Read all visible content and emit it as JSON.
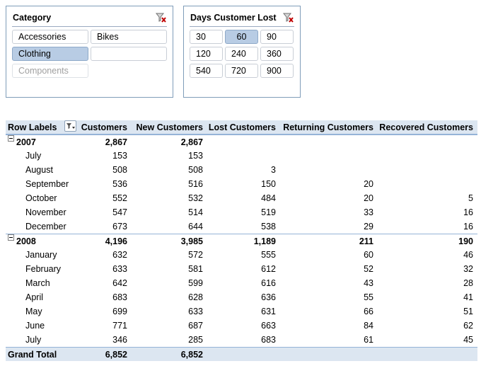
{
  "slicers": {
    "category": {
      "title": "Category",
      "items": [
        {
          "label": "Accessories",
          "state": "normal"
        },
        {
          "label": "Bikes",
          "state": "normal"
        },
        {
          "label": "Clothing",
          "state": "selected"
        },
        {
          "label": "",
          "state": "empty"
        },
        {
          "label": "Components",
          "state": "nodata"
        }
      ]
    },
    "days": {
      "title": "Days Customer Lost",
      "items": [
        {
          "label": "30",
          "state": "normal"
        },
        {
          "label": "60",
          "state": "selected"
        },
        {
          "label": "90",
          "state": "normal"
        },
        {
          "label": "120",
          "state": "normal"
        },
        {
          "label": "240",
          "state": "normal"
        },
        {
          "label": "360",
          "state": "normal"
        },
        {
          "label": "540",
          "state": "normal"
        },
        {
          "label": "720",
          "state": "normal"
        },
        {
          "label": "900",
          "state": "normal"
        }
      ]
    },
    "clear_filter_icon": "funnel-clear-icon"
  },
  "pivot": {
    "headers": [
      "Row Labels",
      "Customers",
      "New Customers",
      "Lost Customers",
      "Returning Customers",
      "Recovered Customers"
    ],
    "groups": [
      {
        "label": "2007",
        "totals": [
          "2,867",
          "2,867",
          "",
          "",
          ""
        ],
        "rows": [
          {
            "label": "July",
            "values": [
              "153",
              "153",
              "",
              "",
              ""
            ]
          },
          {
            "label": "August",
            "values": [
              "508",
              "508",
              "3",
              "",
              ""
            ]
          },
          {
            "label": "September",
            "values": [
              "536",
              "516",
              "150",
              "20",
              ""
            ]
          },
          {
            "label": "October",
            "values": [
              "552",
              "532",
              "484",
              "20",
              "5"
            ]
          },
          {
            "label": "November",
            "values": [
              "547",
              "514",
              "519",
              "33",
              "16"
            ]
          },
          {
            "label": "December",
            "values": [
              "673",
              "644",
              "538",
              "29",
              "16"
            ]
          }
        ]
      },
      {
        "label": "2008",
        "totals": [
          "4,196",
          "3,985",
          "1,189",
          "211",
          "190"
        ],
        "rows": [
          {
            "label": "January",
            "values": [
              "632",
              "572",
              "555",
              "60",
              "46"
            ]
          },
          {
            "label": "February",
            "values": [
              "633",
              "581",
              "612",
              "52",
              "32"
            ]
          },
          {
            "label": "March",
            "values": [
              "642",
              "599",
              "616",
              "43",
              "28"
            ]
          },
          {
            "label": "April",
            "values": [
              "683",
              "628",
              "636",
              "55",
              "41"
            ]
          },
          {
            "label": "May",
            "values": [
              "699",
              "633",
              "631",
              "66",
              "51"
            ]
          },
          {
            "label": "June",
            "values": [
              "771",
              "687",
              "663",
              "84",
              "62"
            ]
          },
          {
            "label": "July",
            "values": [
              "346",
              "285",
              "683",
              "61",
              "45"
            ]
          }
        ]
      }
    ],
    "grand_total": {
      "label": "Grand Total",
      "values": [
        "6,852",
        "6,852",
        "",
        "",
        ""
      ]
    }
  },
  "colors": {
    "selected": "#b8cce4",
    "header_bg": "#dce6f1",
    "border": "#95b3d7",
    "clear_x": "#c00000"
  }
}
